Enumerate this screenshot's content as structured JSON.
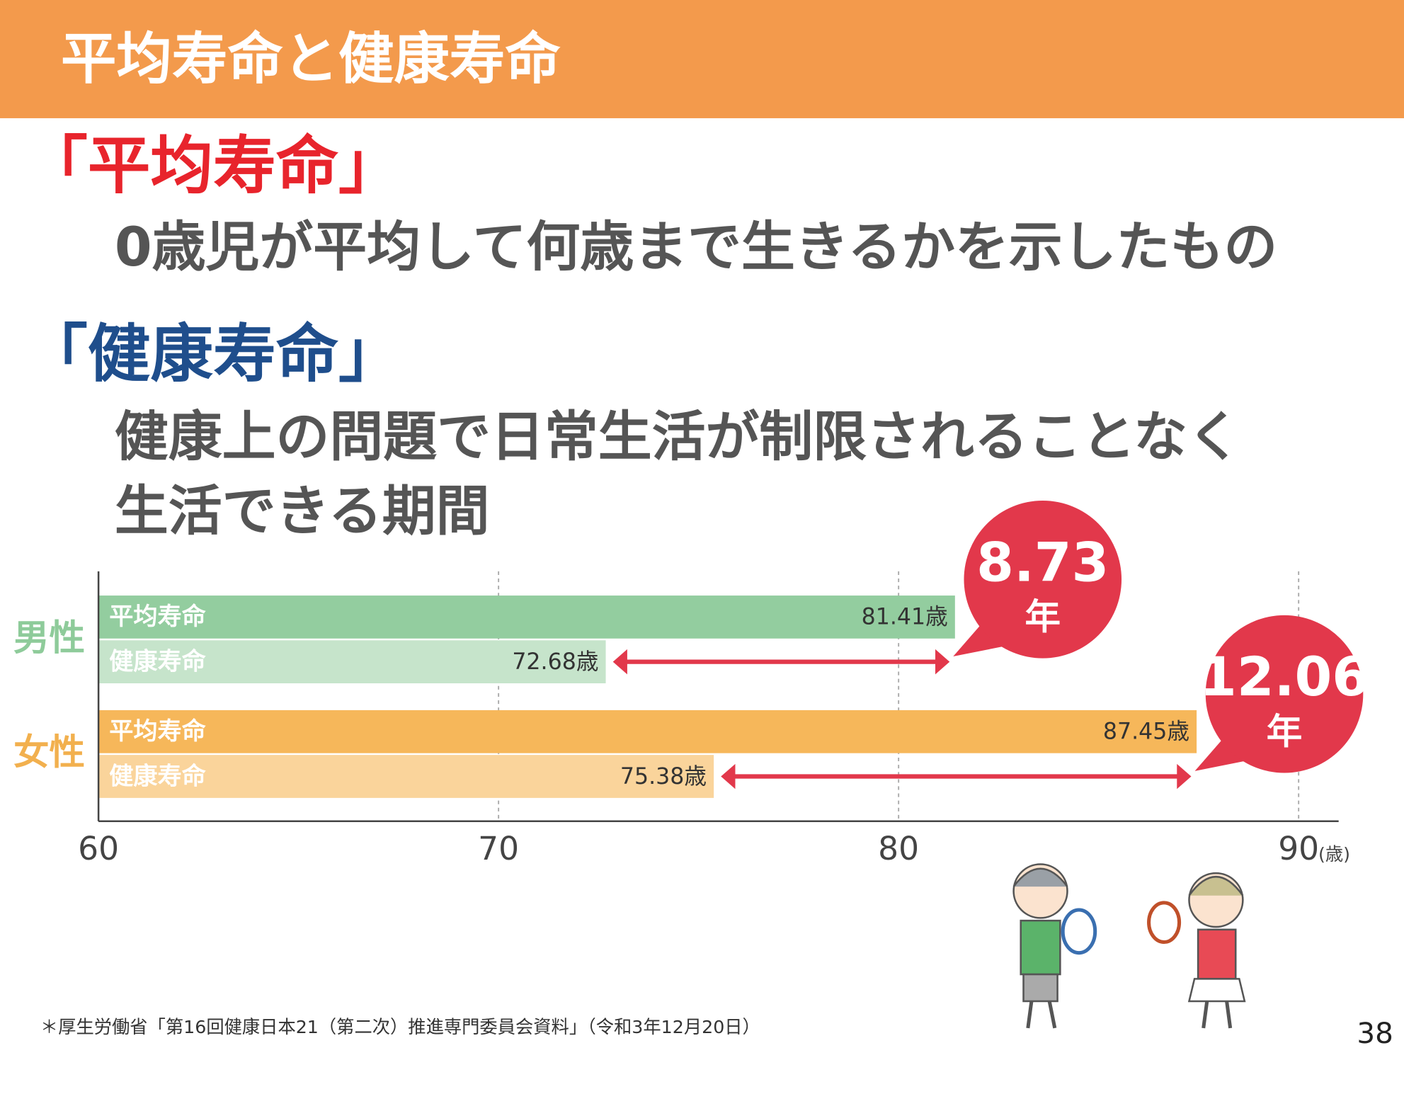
{
  "header": {
    "title": "平均寿命と健康寿命"
  },
  "definitions": [
    {
      "term": "「平均寿命」",
      "lines": [
        "0歳児が平均して何歳まで生きるかを示したもの"
      ]
    },
    {
      "term": "「健康寿命」",
      "lines": [
        "健康上の問題で日常生活が制限されることなく",
        "生活できる期間"
      ]
    }
  ],
  "chart_data": {
    "type": "hbar",
    "categories": [
      "男性",
      "女性"
    ],
    "category_colors": [
      "#8ecb9a",
      "#f2b04e"
    ],
    "series": [
      {
        "name": "平均寿命",
        "colors": [
          "#93cd9f",
          "#f6b75a"
        ],
        "values": [
          81.41,
          87.45
        ],
        "value_labels": [
          "81.41歳",
          "87.45歳"
        ]
      },
      {
        "name": "健康寿命",
        "colors": [
          "#c6e4cb",
          "#fad49b"
        ],
        "values": [
          72.68,
          75.38
        ],
        "value_labels": [
          "72.68歳",
          "75.38歳"
        ]
      }
    ],
    "xlim": [
      60,
      91
    ],
    "xticks": [
      60,
      70,
      80,
      90
    ],
    "x_unit": "(歳)",
    "grid": true,
    "annotations": [
      {
        "value": 8.73,
        "unit": "年"
      },
      {
        "value": 12.06,
        "unit": "年"
      }
    ],
    "annotation_color": "#e2384b"
  },
  "footer": {
    "source": "＊厚生労働省「第16回健康日本21（第二次）推進専門委員会資料」（令和3年12月20日）",
    "page": "38"
  }
}
